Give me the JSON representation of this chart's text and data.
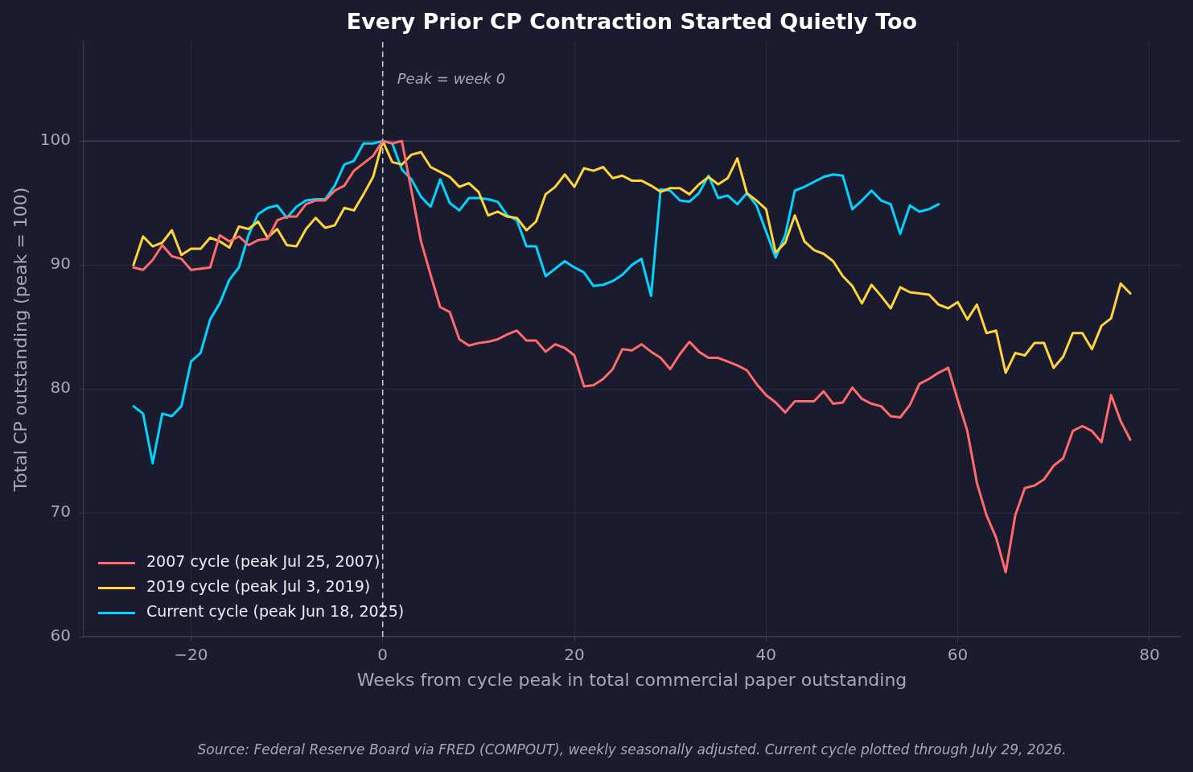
{
  "chart_data": {
    "type": "line",
    "title": "Every Prior CP Contraction Started Quietly Too",
    "xlabel": "Weeks from cycle peak in total commercial paper outstanding",
    "ylabel": "Total CP outstanding (peak = 100)",
    "annotations": [
      "Source: Federal Reserve Board via FRED (COMPOUT), weekly seasonally adjusted. Current cycle plotted through July 29, 2026."
    ],
    "x": [
      -26,
      -25,
      -24,
      -23,
      -22,
      -21,
      -20,
      -19,
      -18,
      -17,
      -16,
      -15,
      -14,
      -13,
      -12,
      -11,
      -10,
      -9,
      -8,
      -7,
      -6,
      -5,
      -4,
      -3,
      -2,
      -1,
      0,
      1,
      2,
      3,
      4,
      5,
      6,
      7,
      8,
      9,
      10,
      11,
      12,
      13,
      14,
      15,
      16,
      17,
      18,
      19,
      20,
      21,
      22,
      23,
      24,
      25,
      26,
      27,
      28,
      29,
      30,
      31,
      32,
      33,
      34,
      35,
      36,
      37,
      38,
      39,
      40,
      41,
      42,
      43,
      44,
      45,
      46,
      47,
      48,
      49,
      50,
      51,
      52,
      53,
      54,
      55,
      56,
      57,
      58,
      59,
      60,
      61,
      62,
      63,
      64,
      65,
      66,
      67,
      68,
      69,
      70,
      71,
      72,
      73,
      74,
      75,
      76,
      77,
      78
    ],
    "series": [
      {
        "name": "2007 cycle (peak Jul 25, 2007)",
        "color": "#ff6b6b",
        "values": [
          89.8,
          89.6,
          90.4,
          91.6,
          90.7,
          90.5,
          89.6,
          89.7,
          89.8,
          92.4,
          91.9,
          92.3,
          91.6,
          92.0,
          92.1,
          93.6,
          93.9,
          93.9,
          94.9,
          95.2,
          95.2,
          96.0,
          96.4,
          97.6,
          98.2,
          98.8,
          100,
          99.8,
          100,
          96.0,
          91.9,
          89.2,
          86.6,
          86.2,
          84.0,
          83.5,
          83.7,
          83.8,
          84.0,
          84.4,
          84.7,
          83.9,
          83.9,
          83.0,
          83.6,
          83.3,
          82.7,
          80.2,
          80.3,
          80.8,
          81.6,
          83.2,
          83.1,
          83.6,
          83.0,
          82.5,
          81.6,
          82.8,
          83.8,
          83.0,
          82.5,
          82.5,
          82.2,
          81.9,
          81.5,
          80.4,
          79.5,
          78.9,
          78.1,
          79.0,
          79.0,
          79.0,
          79.8,
          78.8,
          78.9,
          80.1,
          79.2,
          78.8,
          78.6,
          77.8,
          77.7,
          78.7,
          80.4,
          80.8,
          81.3,
          81.7,
          79.1,
          76.6,
          72.4,
          69.8,
          68.0,
          65.2,
          69.8,
          72.0,
          72.2,
          72.7,
          73.8,
          74.4,
          76.6,
          77.0,
          76.6,
          75.7,
          79.5,
          77.4,
          75.9
        ]
      },
      {
        "name": "2019 cycle (peak Jul 3, 2019)",
        "color": "#ffd43b",
        "values": [
          90.0,
          92.3,
          91.5,
          91.8,
          92.8,
          90.8,
          91.3,
          91.3,
          92.2,
          91.9,
          91.4,
          93.1,
          92.9,
          93.5,
          92.2,
          92.9,
          91.6,
          91.5,
          92.9,
          93.8,
          93.0,
          93.2,
          94.6,
          94.4,
          95.7,
          97.1,
          100,
          98.3,
          98.1,
          98.9,
          99.1,
          97.9,
          97.5,
          97.1,
          96.3,
          96.6,
          95.9,
          94.0,
          94.3,
          93.9,
          93.8,
          92.8,
          93.5,
          95.7,
          96.3,
          97.3,
          96.3,
          97.8,
          97.6,
          97.9,
          97.0,
          97.2,
          96.8,
          96.8,
          96.4,
          95.9,
          96.2,
          96.2,
          95.7,
          96.5,
          97.1,
          96.5,
          97.0,
          98.6,
          95.8,
          95.2,
          94.5,
          91.0,
          91.8,
          94.0,
          91.9,
          91.2,
          90.9,
          90.3,
          89.1,
          88.3,
          86.9,
          88.4,
          87.5,
          86.5,
          88.2,
          87.8,
          87.7,
          87.6,
          86.8,
          86.5,
          87.0,
          85.6,
          86.8,
          84.5,
          84.7,
          81.3,
          82.9,
          82.7,
          83.7,
          83.7,
          81.7,
          82.6,
          84.5,
          84.5,
          83.2,
          85.1,
          85.7,
          88.5,
          87.7
        ]
      },
      {
        "name": "Current cycle (peak Jun 18, 2025)",
        "color": "#00d4ff",
        "values": [
          78.6,
          78.0,
          74.0,
          78.0,
          77.8,
          78.6,
          82.2,
          82.9,
          85.6,
          86.9,
          88.8,
          89.8,
          92.4,
          94.1,
          94.6,
          94.8,
          93.8,
          94.7,
          95.2,
          95.3,
          95.3,
          96.4,
          98.1,
          98.4,
          99.8,
          99.8,
          100,
          99.8,
          97.7,
          96.9,
          95.5,
          94.7,
          96.9,
          95.0,
          94.4,
          95.4,
          95.4,
          95.3,
          95.1,
          94.0,
          93.6,
          91.5,
          91.5,
          89.1,
          89.7,
          90.3,
          89.8,
          89.4,
          88.3,
          88.4,
          88.7,
          89.2,
          90.0,
          90.5,
          87.5,
          96.1,
          96.0,
          95.2,
          95.1,
          95.8,
          97.2,
          95.4,
          95.6,
          94.9,
          95.8,
          94.8,
          92.7,
          90.6,
          92.4,
          96.0,
          96.3,
          96.7,
          97.1,
          97.3,
          97.2,
          94.5,
          95.2,
          96.0,
          95.2,
          94.9,
          92.5,
          94.8,
          94.3,
          94.5,
          94.9,
          null,
          null,
          null,
          null,
          null,
          null,
          null,
          null,
          null,
          null,
          null,
          null,
          null,
          null,
          null,
          null,
          null,
          null,
          null,
          null
        ]
      }
    ],
    "xlim": [
      -31.2,
      83.2
    ],
    "ylim": [
      60,
      108
    ],
    "xticks": [
      {
        "value": -20,
        "label": "−20"
      },
      0,
      20,
      40,
      60,
      80
    ],
    "yticks": [
      60,
      70,
      80,
      90,
      100
    ],
    "grid": true,
    "legend": "bottom left",
    "ref_lines": [
      {
        "axis": "x",
        "value": 0,
        "label": "Peak = week 0",
        "color": "#c8c8d2",
        "line_style": "dashed"
      },
      {
        "axis": "y",
        "value": 100,
        "color": "#3b3c56"
      }
    ]
  }
}
